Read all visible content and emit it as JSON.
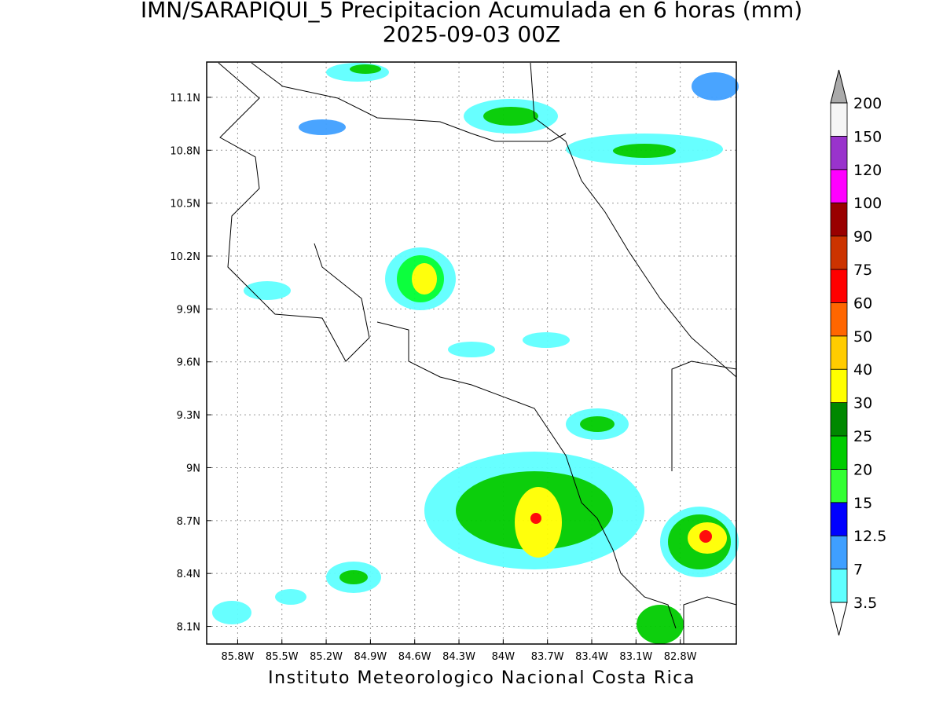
{
  "title": "IMN/SARAPIQUI_5 Precipitacion Acumulada en 6 horas (mm)",
  "subtitle": "2025-09-03 00Z",
  "footer": "Instituto Meteorologico Nacional Costa Rica",
  "map": {
    "xlim": [
      -86.01,
      -82.42
    ],
    "ylim": [
      8.0,
      11.3
    ],
    "grid": true,
    "xticks": [
      {
        "value": -85.8,
        "label": "85.8W"
      },
      {
        "value": -85.5,
        "label": "85.5W"
      },
      {
        "value": -85.2,
        "label": "85.2W"
      },
      {
        "value": -84.9,
        "label": "84.9W"
      },
      {
        "value": -84.6,
        "label": "84.6W"
      },
      {
        "value": -84.3,
        "label": "84.3W"
      },
      {
        "value": -84.0,
        "label": "84W"
      },
      {
        "value": -83.7,
        "label": "83.7W"
      },
      {
        "value": -83.4,
        "label": "83.4W"
      },
      {
        "value": -83.1,
        "label": "83.1W"
      },
      {
        "value": -82.8,
        "label": "82.8W"
      }
    ],
    "yticks": [
      {
        "value": 8.1,
        "label": "8.1N"
      },
      {
        "value": 8.4,
        "label": "8.4N"
      },
      {
        "value": 8.7,
        "label": "8.7N"
      },
      {
        "value": 9.0,
        "label": "9N"
      },
      {
        "value": 9.3,
        "label": "9.3N"
      },
      {
        "value": 9.6,
        "label": "9.6N"
      },
      {
        "value": 9.9,
        "label": "9.9N"
      },
      {
        "value": 10.2,
        "label": "10.2N"
      },
      {
        "value": 10.5,
        "label": "10.5N"
      },
      {
        "value": 10.8,
        "label": "10.8N"
      },
      {
        "value": 11.1,
        "label": "11.1N"
      }
    ]
  },
  "colorbar": {
    "levels": [
      3.5,
      7,
      12.5,
      15,
      20,
      25,
      30,
      40,
      50,
      60,
      75,
      90,
      100,
      120,
      150,
      200
    ],
    "colors": [
      "#5fffff",
      "#3f9fff",
      "#0000ff",
      "#33ff33",
      "#00cc00",
      "#008800",
      "#ffff00",
      "#ffcc00",
      "#ff6600",
      "#ff0000",
      "#cc3300",
      "#990000",
      "#ff00ff",
      "#9933cc",
      "#f5f5f5"
    ],
    "under_color": "#ffffff",
    "over_color": "#aaaaaa"
  }
}
